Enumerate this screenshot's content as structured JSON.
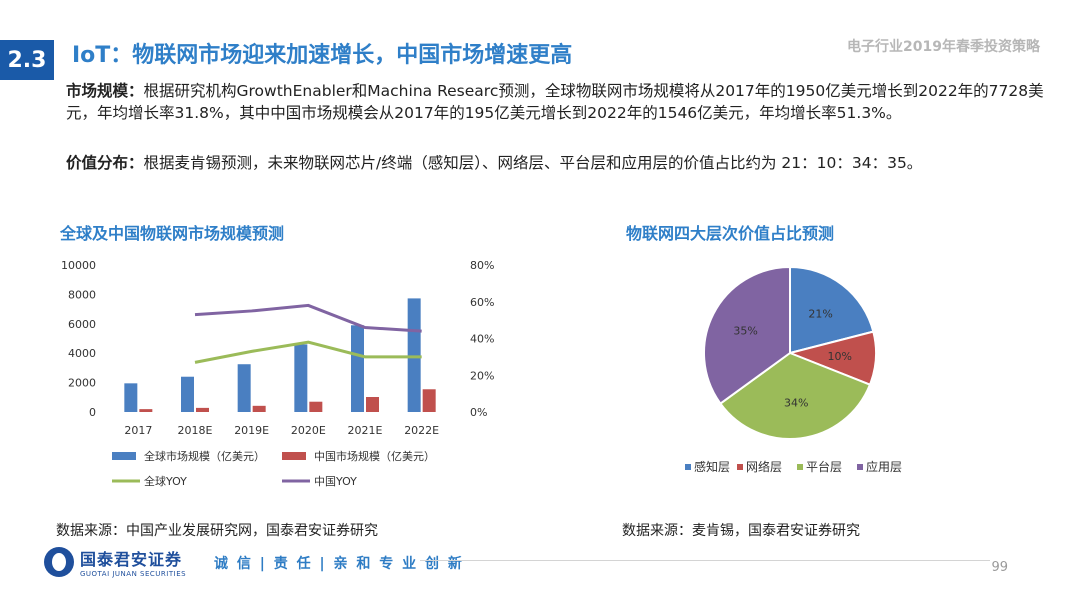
{
  "header": {
    "section_number": "2.3",
    "title": "IoT：物联网市场迎来加速增长，中国市场增速更高",
    "report_name": "电子行业2019年春季投资策略"
  },
  "body": {
    "p1_label": "市场规模：",
    "p1_text": "根据研究机构GrowthEnabler和Machina Researc预测，全球物联网市场规模将从2017年的1950亿美元增长到2022年的7728美元，年均增长率31.8%，其中中国市场规模会从2017年的195亿美元增长到2022年的1546亿美元，年均增长率51.3%。",
    "p2_label": "价值分布：",
    "p2_text": "根据麦肯锡预测，未来物联网芯片/终端（感知层）、网络层、平台层和应用层的价值占比约为 21：10：34：35。"
  },
  "colors": {
    "global_bar": "#4a7fc1",
    "china_bar": "#c0504d",
    "global_yoy": "#9bbb59",
    "china_yoy": "#8064a2",
    "title_blue": "#2f7fc8",
    "badge_blue": "#1a5aa8"
  },
  "chart_data": [
    {
      "type": "bar",
      "title": "全球及中国物联网市场规模预测",
      "categories": [
        "2017",
        "2018E",
        "2019E",
        "2020E",
        "2021E",
        "2022E"
      ],
      "y_left_ticks": [
        "0",
        "2000",
        "4000",
        "6000",
        "8000",
        "10000"
      ],
      "y_right_ticks": [
        "0%",
        "20%",
        "40%",
        "60%",
        "80%"
      ],
      "ylim_left": [
        0,
        10000
      ],
      "ylim_right": [
        0,
        80
      ],
      "series": [
        {
          "name": "全球市场规模（亿美元）",
          "kind": "bar",
          "axis": "left",
          "values": [
            1950,
            2400,
            3250,
            4600,
            5900,
            7728
          ]
        },
        {
          "name": "中国市场规模（亿美元）",
          "kind": "bar",
          "axis": "left",
          "values": [
            195,
            280,
            420,
            700,
            1020,
            1546
          ]
        },
        {
          "name": "全球YOY",
          "kind": "line",
          "axis": "right",
          "values": [
            null,
            27,
            33,
            38,
            30,
            30
          ]
        },
        {
          "name": "中国YOY",
          "kind": "line",
          "axis": "right",
          "values": [
            null,
            53,
            55,
            58,
            46,
            44
          ]
        }
      ],
      "legend_position": "bottom"
    },
    {
      "type": "pie",
      "title": "物联网四大层次价值占比预测",
      "labels": [
        "感知层",
        "网络层",
        "平台层",
        "应用层"
      ],
      "values": [
        21,
        10,
        34,
        35
      ],
      "display": [
        "21%",
        "10%",
        "34%",
        "35%"
      ],
      "colors": [
        "#4a7fc1",
        "#c0504d",
        "#9bbb59",
        "#8064a2"
      ],
      "legend_position": "bottom"
    }
  ],
  "sources": {
    "left": "数据来源：中国产业发展研究网，国泰君安证券研究",
    "right": "数据来源：麦肯锡，国泰君安证券研究"
  },
  "footer": {
    "company_cn": "国泰君安证券",
    "company_en": "GUOTAI JUNAN SECURITIES",
    "slogan": "诚 信 | 责 任 | 亲 和   专 业   创 新",
    "page_number": "99"
  }
}
